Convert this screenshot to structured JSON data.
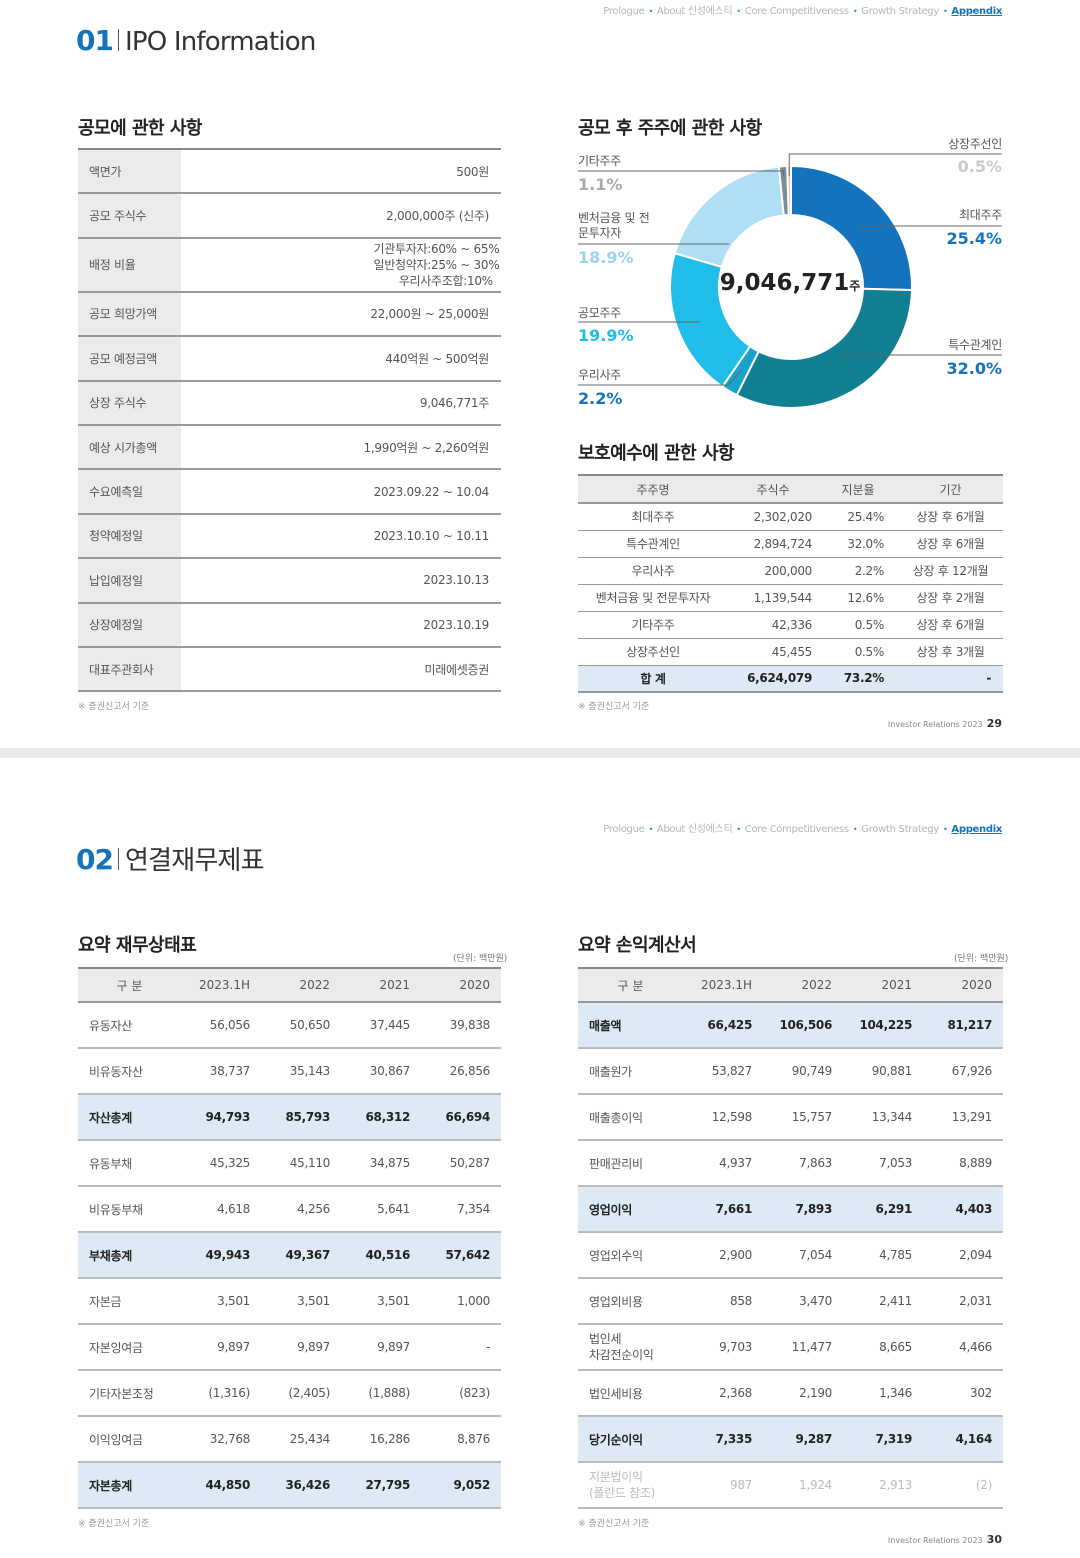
{
  "nav": {
    "items": [
      "Prologue",
      "About 신성에스티",
      "Core Competitiveness",
      "Growth Strategy",
      "Appendix"
    ]
  },
  "page1": {
    "num": "01",
    "title": "IPO Information",
    "ipo": {
      "heading": "공모에 관한 사항",
      "rows": [
        {
          "label": "액면가",
          "value": "500원"
        },
        {
          "label": "공모 주식수",
          "value": "2,000,000주 (신주)"
        },
        {
          "label": "배정 비율",
          "value": ""
        },
        {
          "label": "공모 희망가액",
          "value": "22,000원 ~ 25,000원"
        },
        {
          "label": "공모 예정금액",
          "value": "440억원 ~ 500억원"
        },
        {
          "label": "상장 주식수",
          "value": "9,046,771주"
        },
        {
          "label": "예상 시가총액",
          "value": "1,990억원 ~ 2,260억원"
        },
        {
          "label": "수요예측일",
          "value": "2023.09.22 ~ 10.04"
        },
        {
          "label": "청약예정일",
          "value": "2023.10.10 ~ 10.11"
        },
        {
          "label": "납입예정일",
          "value": "2023.10.13"
        },
        {
          "label": "상장예정일",
          "value": "2023.10.19"
        },
        {
          "label": "대표주관회사",
          "value": "미래에셋증권"
        }
      ],
      "allocation": [
        {
          "k": "기관투자자:",
          "v": "60% ~ 65%"
        },
        {
          "k": "일반청약자:",
          "v": "25% ~ 30%"
        },
        {
          "k": "우리사주조합:",
          "v": "10%"
        }
      ],
      "note": "※ 증권신고서 기준"
    },
    "holders": {
      "heading": "공모 후 주주에 관한 사항",
      "total": "9,046,771",
      "unit": "주"
    },
    "lockup": {
      "heading": "보호예수에 관한 사항",
      "headers": [
        "주주명",
        "주식수",
        "지분율",
        "기간"
      ],
      "rows": [
        [
          "최대주주",
          "2,302,020",
          "25.4%",
          "상장 후 6개월"
        ],
        [
          "특수관계인",
          "2,894,724",
          "32.0%",
          "상장 후 6개월"
        ],
        [
          "우리사주",
          "200,000",
          "2.2%",
          "상장 후 12개월"
        ],
        [
          "벤처금융 및 전문투자자",
          "1,139,544",
          "12.6%",
          "상장 후 2개월"
        ],
        [
          "기타주주",
          "42,336",
          "0.5%",
          "상장 후 6개월"
        ],
        [
          "상장주선인",
          "45,455",
          "0.5%",
          "상장 후 3개월"
        ]
      ],
      "total": [
        "합 계",
        "6,624,079",
        "73.2%",
        "-"
      ],
      "note": "※ 증권신고서 기준"
    },
    "footer": {
      "text": "Investor Relations 2023",
      "page": "29"
    }
  },
  "chart_data": {
    "type": "pie",
    "center_label": "9,046,771주",
    "categories": [
      "최대주주",
      "특수관계인",
      "우리사주",
      "공모주주",
      "벤처금융 및 전문투자자",
      "기타주주",
      "상장주선인"
    ],
    "values": [
      25.4,
      32.0,
      2.2,
      19.9,
      18.9,
      1.1,
      0.5
    ],
    "labels": [
      "25.4%",
      "32.0%",
      "2.2%",
      "19.9%",
      "18.9%",
      "1.1%",
      "0.5%"
    ],
    "colors": [
      "#1373bd",
      "#0f7f91",
      "#16a4cf",
      "#1fbde8",
      "#afdff5",
      "#7d8c95",
      "#c9c9c9"
    ],
    "label_colors": [
      "#1373bd",
      "#1373bd",
      "#1373bd",
      "#1fbde8",
      "#9ed4ef",
      "#aaaaaa",
      "#c9c9c9"
    ]
  },
  "page2": {
    "num": "02",
    "title": "연결재무제표",
    "bs": {
      "heading": "요약 재무상태표",
      "unit": "(단위: 백만원)",
      "headers": [
        "구 분",
        "2023.1H",
        "2022",
        "2021",
        "2020"
      ],
      "rows": [
        {
          "c": [
            "유동자산",
            "56,056",
            "50,650",
            "37,445",
            "39,838"
          ],
          "hl": false
        },
        {
          "c": [
            "비유동자산",
            "38,737",
            "35,143",
            "30,867",
            "26,856"
          ],
          "hl": false
        },
        {
          "c": [
            "자산총계",
            "94,793",
            "85,793",
            "68,312",
            "66,694"
          ],
          "hl": true
        },
        {
          "c": [
            "유동부채",
            "45,325",
            "45,110",
            "34,875",
            "50,287"
          ],
          "hl": false
        },
        {
          "c": [
            "비유동부채",
            "4,618",
            "4,256",
            "5,641",
            "7,354"
          ],
          "hl": false
        },
        {
          "c": [
            "부채총계",
            "49,943",
            "49,367",
            "40,516",
            "57,642"
          ],
          "hl": true
        },
        {
          "c": [
            "자본금",
            "3,501",
            "3,501",
            "3,501",
            "1,000"
          ],
          "hl": false
        },
        {
          "c": [
            "자본잉여금",
            "9,897",
            "9,897",
            "9,897",
            "-"
          ],
          "hl": false
        },
        {
          "c": [
            "기타자본조정",
            "(1,316)",
            "(2,405)",
            "(1,888)",
            "(823)"
          ],
          "hl": false
        },
        {
          "c": [
            "이익잉여금",
            "32,768",
            "25,434",
            "16,286",
            "8,876"
          ],
          "hl": false
        },
        {
          "c": [
            "자본총계",
            "44,850",
            "36,426",
            "27,795",
            "9,052"
          ],
          "hl": true
        }
      ],
      "note": "※ 증권신고서 기준"
    },
    "is": {
      "heading": "요약 손익계산서",
      "unit": "(단위: 백만원)",
      "headers": [
        "구 분",
        "2023.1H",
        "2022",
        "2021",
        "2020"
      ],
      "rows": [
        {
          "c": [
            "매출액",
            "66,425",
            "106,506",
            "104,225",
            "81,217"
          ],
          "hl": true
        },
        {
          "c": [
            "매출원가",
            "53,827",
            "90,749",
            "90,881",
            "67,926"
          ],
          "hl": false
        },
        {
          "c": [
            "매출총이익",
            "12,598",
            "15,757",
            "13,344",
            "13,291"
          ],
          "hl": false
        },
        {
          "c": [
            "판매관리비",
            "4,937",
            "7,863",
            "7,053",
            "8,889"
          ],
          "hl": false
        },
        {
          "c": [
            "영업이익",
            "7,661",
            "7,893",
            "6,291",
            "4,403"
          ],
          "hl": true
        },
        {
          "c": [
            "영업외수익",
            "2,900",
            "7,054",
            "4,785",
            "2,094"
          ],
          "hl": false
        },
        {
          "c": [
            "영업외비용",
            "858",
            "3,470",
            "2,411",
            "2,031"
          ],
          "hl": false
        },
        {
          "c": [
            "법인세\n차감전순이익",
            "9,703",
            "11,477",
            "8,665",
            "4,466"
          ],
          "hl": false
        },
        {
          "c": [
            "법인세비용",
            "2,368",
            "2,190",
            "1,346",
            "302"
          ],
          "hl": false
        },
        {
          "c": [
            "당기순이익",
            "7,335",
            "9,287",
            "7,319",
            "4,164"
          ],
          "hl": true
        },
        {
          "c": [
            "지분법이익\n(폴란드 참조)",
            "987",
            "1,924",
            "2,913",
            "(2)"
          ],
          "hl": false,
          "dim": true
        }
      ],
      "note": "※ 증권신고서 기준"
    },
    "footer": {
      "text": "Investor Relations 2023",
      "page": "30"
    }
  }
}
